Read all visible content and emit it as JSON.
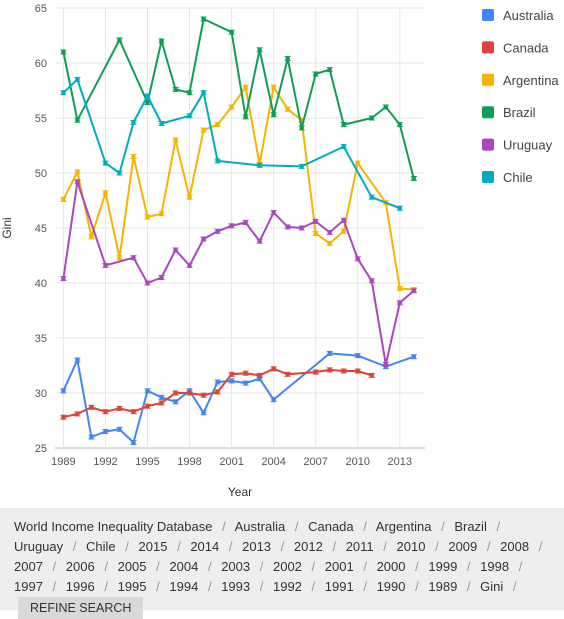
{
  "chart_data": {
    "type": "line",
    "xlabel": "Year",
    "ylabel": "Gini",
    "xlim": [
      1988.4,
      2014.8
    ],
    "ylim": [
      25,
      65
    ],
    "yticks": [
      25,
      30,
      35,
      40,
      45,
      50,
      55,
      60,
      65
    ],
    "xticks": [
      1989,
      1992,
      1995,
      1998,
      2001,
      2004,
      2007,
      2010,
      2013
    ],
    "grid": true,
    "legend_position": "right",
    "series": [
      {
        "name": "Australia",
        "color": "#4285f4",
        "points": [
          [
            1989,
            30.2
          ],
          [
            1990,
            33.0
          ],
          [
            1991,
            26.0
          ],
          [
            1992,
            26.5
          ],
          [
            1993,
            26.7
          ],
          [
            1994,
            25.5
          ],
          [
            1995,
            30.2
          ],
          [
            1996,
            29.6
          ],
          [
            1997,
            29.2
          ],
          [
            1998,
            30.2
          ],
          [
            1999,
            28.2
          ],
          [
            2000,
            31.0
          ],
          [
            2001,
            31.1
          ],
          [
            2002,
            30.9
          ],
          [
            2003,
            31.3
          ],
          [
            2004,
            29.4
          ],
          [
            2008,
            33.6
          ],
          [
            2010,
            33.4
          ],
          [
            2012,
            32.4
          ],
          [
            2014,
            33.3
          ]
        ]
      },
      {
        "name": "Canada",
        "color": "#db4437",
        "points": [
          [
            1989,
            27.8
          ],
          [
            1990,
            28.1
          ],
          [
            1991,
            28.7
          ],
          [
            1992,
            28.3
          ],
          [
            1993,
            28.6
          ],
          [
            1994,
            28.3
          ],
          [
            1995,
            28.8
          ],
          [
            1996,
            29.1
          ],
          [
            1997,
            30.0
          ],
          [
            1998,
            30.0
          ],
          [
            1999,
            29.8
          ],
          [
            2000,
            30.1
          ],
          [
            2001,
            31.7
          ],
          [
            2002,
            31.8
          ],
          [
            2003,
            31.6
          ],
          [
            2004,
            32.2
          ],
          [
            2005,
            31.7
          ],
          [
            2007,
            31.9
          ],
          [
            2008,
            32.1
          ],
          [
            2009,
            32.0
          ],
          [
            2010,
            32.0
          ],
          [
            2011,
            31.6
          ]
        ]
      },
      {
        "name": "Argentina",
        "color": "#f4b400",
        "points": [
          [
            1989,
            47.6
          ],
          [
            1990,
            50.1
          ],
          [
            1991,
            44.2
          ],
          [
            1992,
            48.2
          ],
          [
            1993,
            42.3
          ],
          [
            1994,
            51.5
          ],
          [
            1995,
            46.0
          ],
          [
            1996,
            46.3
          ],
          [
            1997,
            53.0
          ],
          [
            1998,
            47.8
          ],
          [
            1999,
            53.9
          ],
          [
            2000,
            54.4
          ],
          [
            2001,
            56.0
          ],
          [
            2002,
            57.8
          ],
          [
            2003,
            50.8
          ],
          [
            2004,
            57.8
          ],
          [
            2005,
            55.8
          ],
          [
            2006,
            54.8
          ],
          [
            2007,
            44.5
          ],
          [
            2008,
            43.6
          ],
          [
            2009,
            44.7
          ],
          [
            2010,
            50.9
          ],
          [
            2012,
            47.3
          ],
          [
            2013,
            39.5
          ],
          [
            2014,
            39.4
          ]
        ]
      },
      {
        "name": "Brazil",
        "color": "#0f9d58",
        "points": [
          [
            1989,
            61.0
          ],
          [
            1990,
            54.8
          ],
          [
            1993,
            62.1
          ],
          [
            1995,
            56.4
          ],
          [
            1996,
            62.0
          ],
          [
            1997,
            57.6
          ],
          [
            1998,
            57.3
          ],
          [
            1999,
            64.0
          ],
          [
            2001,
            62.8
          ],
          [
            2002,
            55.1
          ],
          [
            2003,
            61.2
          ],
          [
            2004,
            55.3
          ],
          [
            2005,
            60.4
          ],
          [
            2006,
            54.1
          ],
          [
            2007,
            59.0
          ],
          [
            2008,
            59.4
          ],
          [
            2009,
            54.4
          ],
          [
            2011,
            55.0
          ],
          [
            2012,
            56.0
          ],
          [
            2013,
            54.4
          ],
          [
            2014,
            49.5
          ]
        ]
      },
      {
        "name": "Uruguay",
        "color": "#ab47bc",
        "points": [
          [
            1989,
            40.4
          ],
          [
            1990,
            49.2
          ],
          [
            1992,
            41.6
          ],
          [
            1994,
            42.3
          ],
          [
            1995,
            40.0
          ],
          [
            1996,
            40.5
          ],
          [
            1997,
            43.0
          ],
          [
            1998,
            41.6
          ],
          [
            1999,
            44.0
          ],
          [
            2000,
            44.7
          ],
          [
            2001,
            45.2
          ],
          [
            2002,
            45.5
          ],
          [
            2003,
            43.8
          ],
          [
            2004,
            46.4
          ],
          [
            2005,
            45.1
          ],
          [
            2006,
            45.0
          ],
          [
            2007,
            45.6
          ],
          [
            2008,
            44.6
          ],
          [
            2009,
            45.7
          ],
          [
            2010,
            42.2
          ],
          [
            2011,
            40.2
          ],
          [
            2012,
            32.6
          ],
          [
            2013,
            38.2
          ],
          [
            2014,
            39.3
          ]
        ]
      },
      {
        "name": "Chile",
        "color": "#00acc1",
        "points": [
          [
            1989,
            57.3
          ],
          [
            1990,
            58.5
          ],
          [
            1992,
            50.9
          ],
          [
            1993,
            50.0
          ],
          [
            1994,
            54.6
          ],
          [
            1995,
            57.0
          ],
          [
            1996,
            54.5
          ],
          [
            1998,
            55.2
          ],
          [
            1999,
            57.3
          ],
          [
            2000,
            51.1
          ],
          [
            2003,
            50.7
          ],
          [
            2006,
            50.6
          ],
          [
            2009,
            52.4
          ],
          [
            2011,
            47.8
          ],
          [
            2013,
            46.8
          ]
        ]
      }
    ]
  },
  "breadcrumb": {
    "items": [
      "World Income Inequality Database",
      "Australia",
      "Canada",
      "Argentina",
      "Brazil",
      "Uruguay",
      "Chile",
      "2015",
      "2014",
      "2013",
      "2012",
      "2011",
      "2010",
      "2009",
      "2008",
      "2007",
      "2006",
      "2005",
      "2004",
      "2003",
      "2002",
      "2001",
      "2000",
      "1999",
      "1998",
      "1997",
      "1996",
      "1995",
      "1994",
      "1993",
      "1992",
      "1991",
      "1990",
      "1989",
      "Gini"
    ],
    "separator": "/",
    "refine_label": "REFINE SEARCH"
  }
}
